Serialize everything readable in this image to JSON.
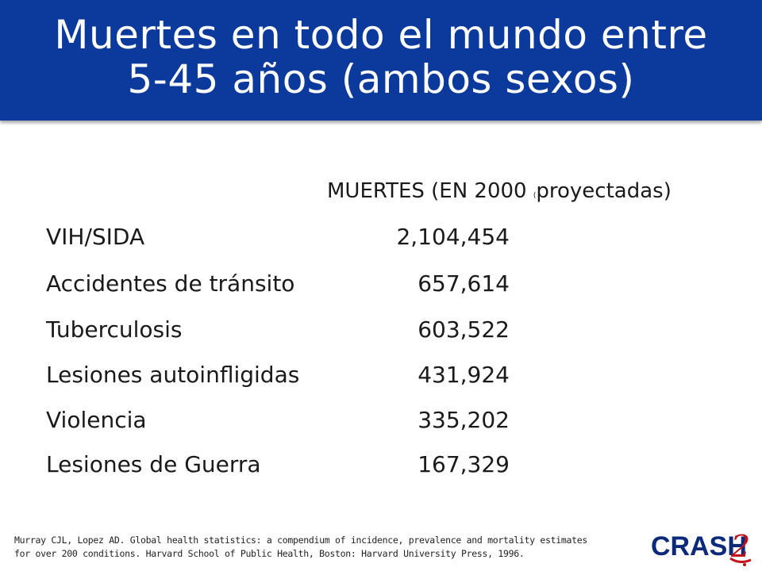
{
  "title": {
    "line1": "Muertes en todo el mundo entre",
    "line2": "5-45 años (ambos sexos)"
  },
  "column_header": {
    "main": "MUERTES (EN 2000",
    "small": "(",
    "end": "proyectadas)"
  },
  "rows": [
    {
      "label": "VIH/SIDA",
      "value": "2,104,454"
    },
    {
      "label": "Accidentes de tránsito",
      "value": "657,614"
    },
    {
      "label": "Tuberculosis",
      "value": "603,522"
    },
    {
      "label": "Lesiones autoinfligidas",
      "value": "431,924"
    },
    {
      "label": "Violencia",
      "value": "335,202"
    },
    {
      "label": "Lesiones de Guerra",
      "value": "167,329"
    }
  ],
  "citation": {
    "line1": "Murray CJL, Lopez AD. Global health statistics: a compendium of incidence, prevalence and mortality estimates",
    "line2": "for over 200 conditions. Harvard School of Public Health, Boston: Harvard University Press, 1996."
  },
  "logo": {
    "text": "CRASH",
    "number": "2",
    "text_color": "#0b2a7a",
    "accent_color": "#c0121a"
  },
  "colors": {
    "title_bar": "#0b3a9c",
    "title_text": "#ffffff"
  }
}
